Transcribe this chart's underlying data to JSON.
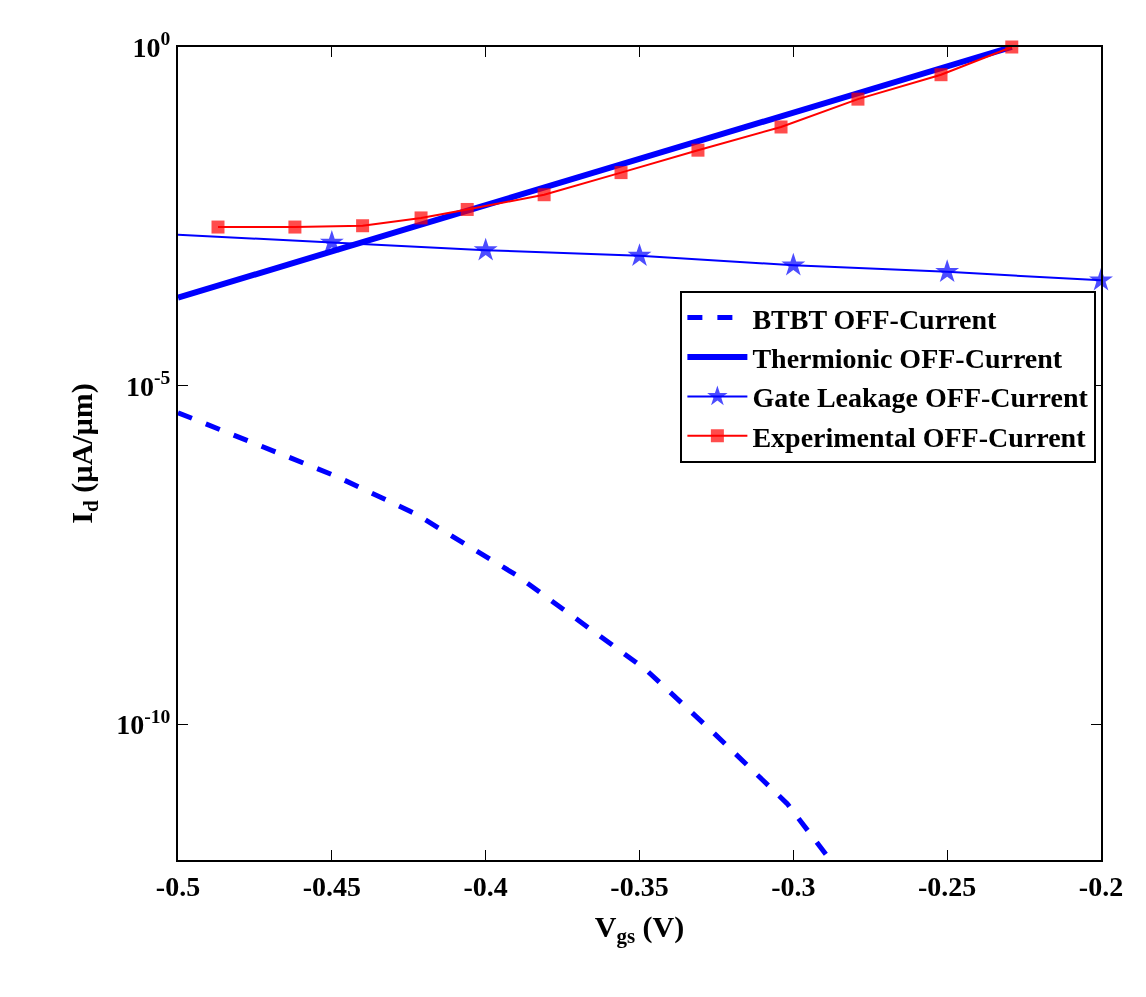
{
  "chart_data": {
    "type": "line",
    "xlabel": "V$_{gs}$ (V)",
    "ylabel": "I$_{d}$ (µA/µm)",
    "log": "y",
    "xlim": [
      -0.5,
      -0.2
    ],
    "xticks": [
      -0.5,
      -0.45,
      -0.4,
      -0.35,
      -0.3,
      -0.25,
      -0.2
    ],
    "ylim": [
      1e-12,
      1
    ],
    "yticks": [
      {
        "value": 1,
        "label": "10$^{0}$"
      },
      {
        "value": 1e-05,
        "label": "10$^{-5}$"
      },
      {
        "value": 1e-10,
        "label": "10$^{-10}$"
      }
    ],
    "legend": "right",
    "series": [
      {
        "name": "BTBT OFF-Current",
        "color": "#0000ff",
        "line_style": "dashed",
        "marker": "none",
        "x": [
          -0.5,
          -0.449,
          -0.423,
          -0.39,
          -0.348,
          -0.326,
          -0.302,
          -0.288
        ],
        "values": [
          4e-06,
          4.7e-07,
          1.3e-07,
          1.6e-08,
          6.5e-10,
          7.6e-11,
          6.8e-12,
          1e-12
        ]
      },
      {
        "name": "Thermionic OFF-Current",
        "color": "#0000ff",
        "line_style": "solid",
        "marker": "none",
        "x": [
          -0.5,
          -0.229
        ],
        "values": [
          0.0002,
          1.0
        ]
      },
      {
        "name": "Gate Leakage OFF-Current",
        "color": "#0000ff",
        "line_style": "solid",
        "marker": "star",
        "x": [
          -0.5,
          -0.45,
          -0.4,
          -0.35,
          -0.3,
          -0.25,
          -0.2
        ],
        "values": [
          0.0017,
          0.0013,
          0.001,
          0.00083,
          0.0006,
          0.00048,
          0.00036
        ]
      },
      {
        "name": "Experimental OFF-Current",
        "color": "#ff0000",
        "line_style": "solid",
        "marker": "square",
        "x": [
          -0.487,
          -0.462,
          -0.44,
          -0.421,
          -0.406,
          -0.381,
          -0.356,
          -0.331,
          -0.304,
          -0.279,
          -0.252,
          -0.229
        ],
        "values": [
          0.0022,
          0.0022,
          0.0023,
          0.003,
          0.004,
          0.0066,
          0.014,
          0.03,
          0.066,
          0.17,
          0.39,
          1.0
        ]
      }
    ]
  }
}
